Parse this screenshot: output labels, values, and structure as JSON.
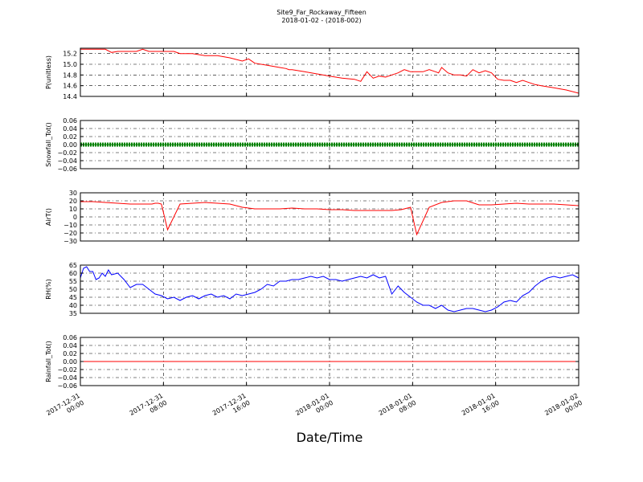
{
  "figure": {
    "title": "Site9_Far_Rockaway_Fifteen",
    "subtitle": "2018-01-02 - (2018-002)",
    "xlabel": "Date/Time",
    "x_ticks": [
      [
        "2017-12-31",
        "00:00"
      ],
      [
        "2017-12-31",
        "08:00"
      ],
      [
        "2017-12-31",
        "16:00"
      ],
      [
        "2018-01-01",
        "00:00"
      ],
      [
        "2018-01-01",
        "08:00"
      ],
      [
        "2018-01-01",
        "16:00"
      ],
      [
        "2018-01-02",
        "00:00"
      ]
    ]
  },
  "chart_data": [
    {
      "type": "line",
      "ylabel": "P(unitless)",
      "ylim": [
        14.4,
        15.3
      ],
      "yticks": [
        14.4,
        14.6,
        14.8,
        15.0,
        15.2
      ],
      "ytick_labels": [
        "14.4",
        "14.6",
        "14.8",
        "15.0",
        "15.2"
      ],
      "grid": true,
      "series": [
        {
          "color": "#ff0000",
          "x": [
            0,
            4,
            5,
            6,
            8,
            9,
            10,
            11,
            12,
            14,
            15,
            16,
            18,
            20,
            22,
            24,
            26,
            27,
            28,
            30,
            32,
            33,
            33.5,
            34,
            36,
            38,
            40,
            42,
            44,
            45,
            46,
            47,
            48,
            49,
            50,
            51,
            52,
            53,
            54,
            55,
            56,
            57,
            57.5,
            58,
            59,
            60,
            61,
            62,
            63,
            64,
            65,
            66,
            66.5,
            67,
            68,
            69,
            70,
            71,
            72,
            73,
            74,
            76,
            78,
            80
          ],
          "y": [
            15.28,
            15.28,
            15.22,
            15.24,
            15.24,
            15.24,
            15.28,
            15.24,
            15.24,
            15.24,
            15.24,
            15.2,
            15.2,
            15.16,
            15.16,
            15.12,
            15.06,
            15.1,
            15.02,
            14.98,
            14.94,
            14.92,
            14.9,
            14.9,
            14.86,
            14.82,
            14.78,
            14.74,
            14.72,
            14.68,
            14.86,
            14.74,
            14.78,
            14.76,
            14.8,
            14.84,
            14.9,
            14.86,
            14.86,
            14.86,
            14.9,
            14.86,
            14.84,
            14.94,
            14.84,
            14.8,
            14.8,
            14.78,
            14.9,
            14.84,
            14.88,
            14.84,
            14.78,
            14.72,
            14.7,
            14.7,
            14.66,
            14.7,
            14.66,
            14.62,
            14.6,
            14.56,
            14.52,
            14.46
          ]
        }
      ]
    },
    {
      "type": "line",
      "ylabel": "Snowfall_Tot()",
      "ylim": [
        -0.06,
        0.06
      ],
      "yticks": [
        -0.06,
        -0.04,
        -0.02,
        0.0,
        0.02,
        0.04,
        0.06
      ],
      "ytick_labels": [
        "−0.06",
        "−0.04",
        "−0.02",
        "0.00",
        "0.02",
        "0.04",
        "0.06"
      ],
      "grid": true,
      "series": [
        {
          "color": "#008000",
          "markers": true,
          "x": [
            0,
            80
          ],
          "y": [
            0,
            0
          ]
        }
      ]
    },
    {
      "type": "line",
      "ylabel": "AirT()",
      "ylim": [
        -30,
        30
      ],
      "yticks": [
        -30,
        -20,
        -10,
        0,
        10,
        20,
        30
      ],
      "ytick_labels": [
        "−30",
        "−20",
        "−10",
        "0",
        "10",
        "20",
        "30"
      ],
      "grid": true,
      "series": [
        {
          "color": "#ff0000",
          "x": [
            0,
            2,
            4,
            6,
            8,
            10,
            11.5,
            12,
            12.5,
            13,
            14,
            16,
            18,
            20,
            22,
            24,
            26,
            28,
            30,
            32,
            34,
            36,
            38,
            40,
            42,
            44,
            46,
            48,
            50,
            51.5,
            52,
            52.5,
            53,
            54,
            56,
            58,
            60,
            62,
            64,
            66,
            68,
            70,
            72,
            74,
            76,
            78,
            80
          ],
          "y": [
            19,
            19,
            18,
            17,
            16,
            16,
            16,
            17,
            17,
            16,
            -16,
            16,
            17,
            18,
            17,
            16,
            12,
            10,
            10,
            10,
            11,
            10,
            10,
            9,
            9,
            8,
            8,
            8,
            8,
            9,
            10,
            11,
            12,
            -22,
            12,
            18,
            20,
            20,
            15,
            15,
            16,
            17,
            16,
            16,
            16,
            15,
            14
          ]
        }
      ]
    },
    {
      "type": "line",
      "ylabel": "RH(%)",
      "ylim": [
        35,
        65
      ],
      "yticks": [
        35,
        40,
        45,
        50,
        55,
        60,
        65
      ],
      "ytick_labels": [
        "35",
        "40",
        "45",
        "50",
        "55",
        "60",
        "65"
      ],
      "grid": true,
      "series": [
        {
          "color": "#0000ff",
          "x": [
            0,
            0.5,
            1,
            1.5,
            2,
            2.5,
            3,
            3.5,
            4,
            4.5,
            5,
            6,
            7,
            8,
            9,
            10,
            11,
            12,
            13,
            14,
            15,
            16,
            17,
            18,
            19,
            20,
            21,
            22,
            23,
            24,
            25,
            26,
            27,
            28,
            29,
            30,
            31,
            32,
            33,
            34,
            35,
            36,
            37,
            38,
            39,
            40,
            41,
            42,
            43,
            44,
            45,
            46,
            47,
            48,
            49,
            50,
            51,
            52,
            53,
            54,
            55,
            56,
            57,
            58,
            59,
            60,
            61,
            62,
            63,
            64,
            65,
            66,
            67,
            68,
            69,
            70,
            71,
            72,
            73,
            74,
            75,
            76,
            77,
            78,
            79,
            80
          ],
          "y": [
            57,
            63,
            64,
            61,
            61,
            56,
            57,
            60,
            58,
            62,
            59,
            60,
            56,
            51,
            53,
            53,
            50,
            47,
            46,
            44,
            45,
            43,
            45,
            46,
            44,
            46,
            47,
            45,
            46,
            44,
            47,
            46,
            47,
            48,
            50,
            53,
            52,
            55,
            55,
            56,
            56,
            57,
            58,
            57,
            58,
            56,
            56,
            55,
            56,
            57,
            58,
            57,
            59,
            57,
            58,
            47,
            52,
            48,
            45,
            42,
            40,
            40,
            38,
            40,
            37,
            36,
            37,
            38,
            38,
            37,
            36,
            37,
            39,
            42,
            43,
            42,
            46,
            48,
            52,
            55,
            57,
            58,
            57,
            58,
            59,
            57
          ]
        }
      ]
    },
    {
      "type": "line",
      "ylabel": "Rainfall_Tot()",
      "ylim": [
        -0.06,
        0.06
      ],
      "yticks": [
        -0.06,
        -0.04,
        -0.02,
        0.0,
        0.02,
        0.04,
        0.06
      ],
      "ytick_labels": [
        "−0.06",
        "−0.04",
        "−0.02",
        "0.00",
        "0.02",
        "0.04",
        "0.06"
      ],
      "grid": true,
      "series": [
        {
          "color": "#ff0000",
          "x": [
            0,
            80
          ],
          "y": [
            0,
            0
          ]
        }
      ]
    }
  ]
}
